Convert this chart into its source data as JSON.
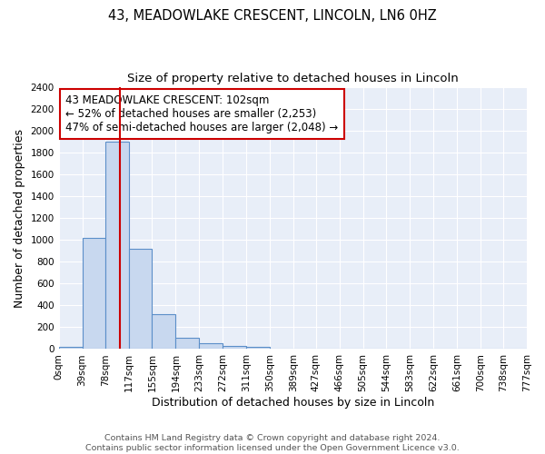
{
  "title": "43, MEADOWLAKE CRESCENT, LINCOLN, LN6 0HZ",
  "subtitle": "Size of property relative to detached houses in Lincoln",
  "xlabel": "Distribution of detached houses by size in Lincoln",
  "ylabel": "Number of detached properties",
  "bar_edges": [
    0,
    39,
    78,
    117,
    155,
    194,
    233,
    272,
    311,
    350,
    389,
    427,
    466,
    505,
    544,
    583,
    622,
    661,
    700,
    738,
    777
  ],
  "bar_heights": [
    20,
    1020,
    1900,
    920,
    320,
    105,
    50,
    30,
    20,
    0,
    0,
    0,
    0,
    0,
    0,
    0,
    0,
    0,
    0,
    0
  ],
  "bar_color": "#c8d8ef",
  "bar_edge_color": "#5b8fc9",
  "vline_x": 102,
  "vline_color": "#cc0000",
  "annotation_line1": "43 MEADOWLAKE CRESCENT: 102sqm",
  "annotation_line2": "← 52% of detached houses are smaller (2,253)",
  "annotation_line3": "47% of semi-detached houses are larger (2,048) →",
  "ylim": [
    0,
    2400
  ],
  "yticks": [
    0,
    200,
    400,
    600,
    800,
    1000,
    1200,
    1400,
    1600,
    1800,
    2000,
    2200,
    2400
  ],
  "xtick_labels": [
    "0sqm",
    "39sqm",
    "78sqm",
    "117sqm",
    "155sqm",
    "194sqm",
    "233sqm",
    "272sqm",
    "311sqm",
    "350sqm",
    "389sqm",
    "427sqm",
    "466sqm",
    "505sqm",
    "544sqm",
    "583sqm",
    "622sqm",
    "661sqm",
    "700sqm",
    "738sqm",
    "777sqm"
  ],
  "footer_text": "Contains HM Land Registry data © Crown copyright and database right 2024.\nContains public sector information licensed under the Open Government Licence v3.0.",
  "bg_color": "#ffffff",
  "plot_bg_color": "#e8eef8",
  "grid_color": "#ffffff",
  "title_fontsize": 10.5,
  "subtitle_fontsize": 9.5,
  "axis_label_fontsize": 9,
  "tick_fontsize": 7.5,
  "footer_fontsize": 6.8,
  "annot_fontsize": 8.5
}
